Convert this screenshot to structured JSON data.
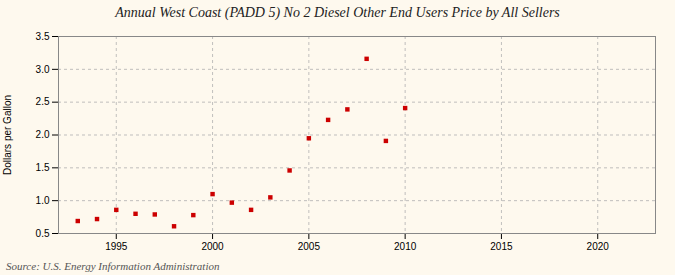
{
  "chart_data": {
    "type": "scatter",
    "title": "Annual West Coast (PADD 5) No 2 Diesel Other End Users Price by All Sellers",
    "ylabel": "Dollars per Gallon",
    "annotations": [
      "Source: U.S. Energy Information Administration"
    ],
    "x": [
      1993,
      1994,
      1995,
      1996,
      1997,
      1998,
      1999,
      2000,
      2001,
      2002,
      2003,
      2004,
      2005,
      2006,
      2007,
      2008,
      2009,
      2010
    ],
    "values": [
      0.69,
      0.72,
      0.86,
      0.8,
      0.79,
      0.61,
      0.78,
      1.1,
      0.97,
      0.86,
      1.05,
      1.46,
      1.95,
      2.23,
      2.39,
      3.16,
      1.91,
      2.41
    ],
    "color": "#cc0000",
    "marker": "square",
    "xlim": [
      1992,
      2023
    ],
    "ylim": [
      0.5,
      3.5
    ],
    "xticks": [
      1995,
      2000,
      2005,
      2010,
      2015,
      2020
    ],
    "yticks": [
      0.5,
      {
        "value": 1.0,
        "label": "1.0"
      },
      1.5,
      {
        "value": 2.0,
        "label": "2.0"
      },
      2.5,
      {
        "value": 3.0,
        "label": "3.0"
      },
      3.5
    ],
    "grid": true
  }
}
